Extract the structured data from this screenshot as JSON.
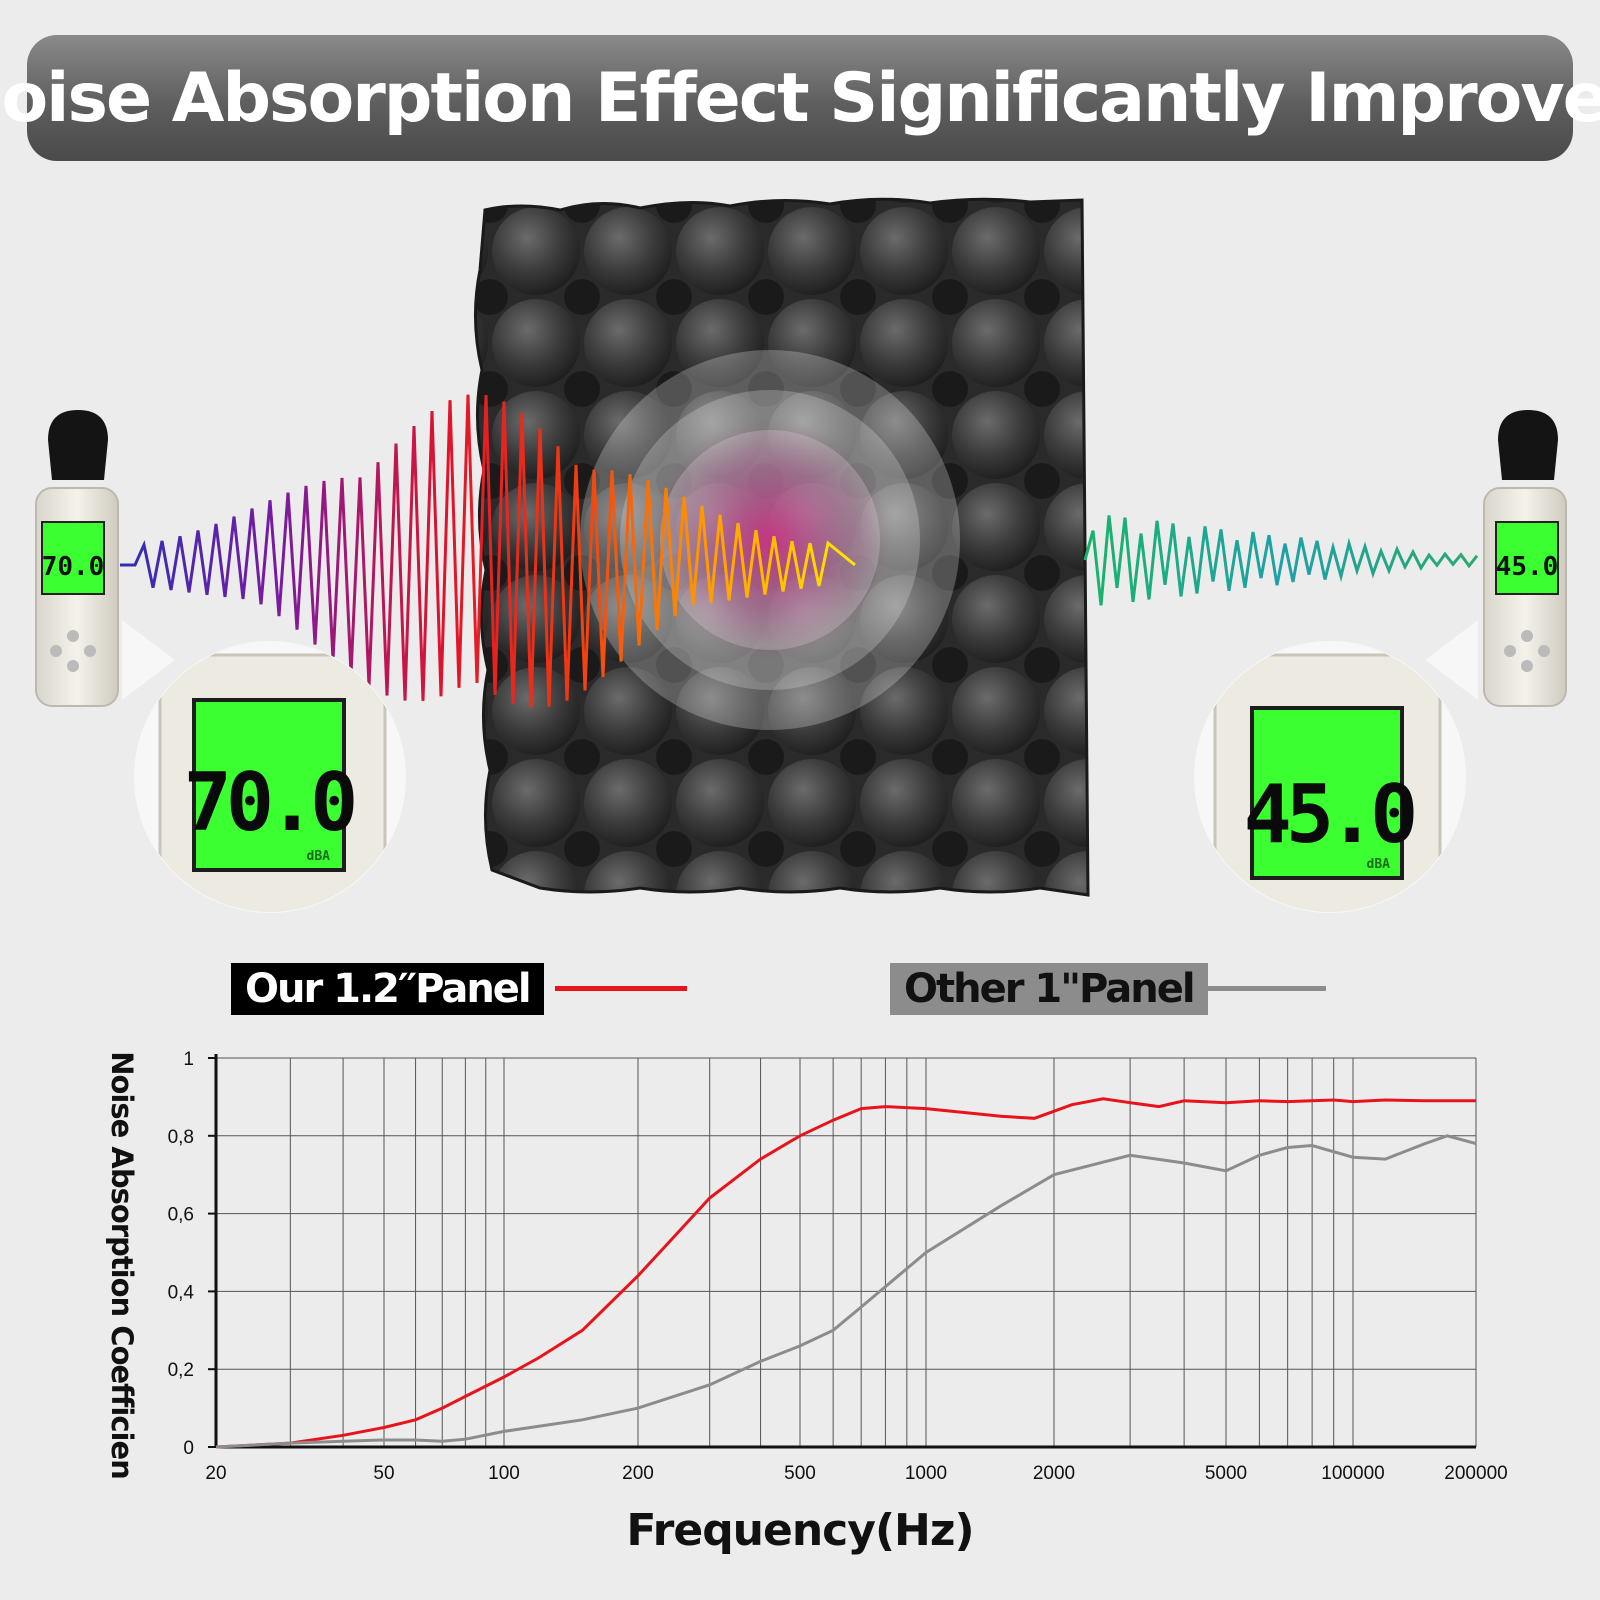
{
  "banner": {
    "title": "Noise Absorption Effect Significantly Improved"
  },
  "meters": {
    "left": {
      "reading": "70.0",
      "unit": "dBA"
    },
    "right": {
      "reading": "45.0",
      "unit": "dBA"
    }
  },
  "colors": {
    "ours": "#e8141b",
    "other": "#8c8c8c"
  },
  "chart_data": {
    "type": "line",
    "title": "",
    "xlabel": "Frequency(Hz)",
    "ylabel": "Noise Absorption Coefficien",
    "x_tick_labels": [
      "20",
      "50",
      "100",
      "200",
      "500",
      "1000",
      "2000",
      "5000",
      "100000",
      "200000"
    ],
    "y_tick_labels": [
      "0",
      "0,2",
      "0,4",
      "0,6",
      "0,8",
      "1"
    ],
    "ylim": [
      0,
      1
    ],
    "grid": true,
    "legend_position": "top",
    "series": [
      {
        "name": "Our 1.2′′Panel",
        "points": [
          [
            20,
            0
          ],
          [
            30,
            0.01
          ],
          [
            40,
            0.03
          ],
          [
            50,
            0.05
          ],
          [
            60,
            0.07
          ],
          [
            70,
            0.1
          ],
          [
            80,
            0.13
          ],
          [
            100,
            0.18
          ],
          [
            120,
            0.23
          ],
          [
            150,
            0.3
          ],
          [
            200,
            0.44
          ],
          [
            250,
            0.55
          ],
          [
            300,
            0.64
          ],
          [
            400,
            0.74
          ],
          [
            500,
            0.8
          ],
          [
            600,
            0.84
          ],
          [
            700,
            0.87
          ],
          [
            800,
            0.875
          ],
          [
            1000,
            0.87
          ],
          [
            1500,
            0.85
          ],
          [
            1800,
            0.845
          ],
          [
            2200,
            0.88
          ],
          [
            2600,
            0.895
          ],
          [
            3000,
            0.885
          ],
          [
            3500,
            0.875
          ],
          [
            4000,
            0.89
          ],
          [
            5000,
            0.885
          ],
          [
            6000,
            0.89
          ],
          [
            7000,
            0.888
          ],
          [
            8000,
            0.89
          ],
          [
            9000,
            0.892
          ],
          [
            10000,
            0.888
          ],
          [
            12000,
            0.892
          ],
          [
            15000,
            0.89
          ],
          [
            20000,
            0.89
          ]
        ]
      },
      {
        "name": "Other 1\"Panel",
        "points": [
          [
            20,
            0
          ],
          [
            30,
            0.01
          ],
          [
            40,
            0.015
          ],
          [
            50,
            0.018
          ],
          [
            60,
            0.018
          ],
          [
            70,
            0.015
          ],
          [
            80,
            0.02
          ],
          [
            100,
            0.04
          ],
          [
            150,
            0.07
          ],
          [
            200,
            0.1
          ],
          [
            300,
            0.16
          ],
          [
            400,
            0.22
          ],
          [
            500,
            0.26
          ],
          [
            600,
            0.3
          ],
          [
            700,
            0.36
          ],
          [
            1000,
            0.5
          ],
          [
            1500,
            0.62
          ],
          [
            2000,
            0.7
          ],
          [
            3000,
            0.75
          ],
          [
            4000,
            0.73
          ],
          [
            5000,
            0.71
          ],
          [
            6000,
            0.75
          ],
          [
            7000,
            0.77
          ],
          [
            8000,
            0.775
          ],
          [
            10000,
            0.745
          ],
          [
            12000,
            0.74
          ],
          [
            15000,
            0.78
          ],
          [
            17000,
            0.8
          ],
          [
            20000,
            0.78
          ]
        ]
      }
    ]
  }
}
